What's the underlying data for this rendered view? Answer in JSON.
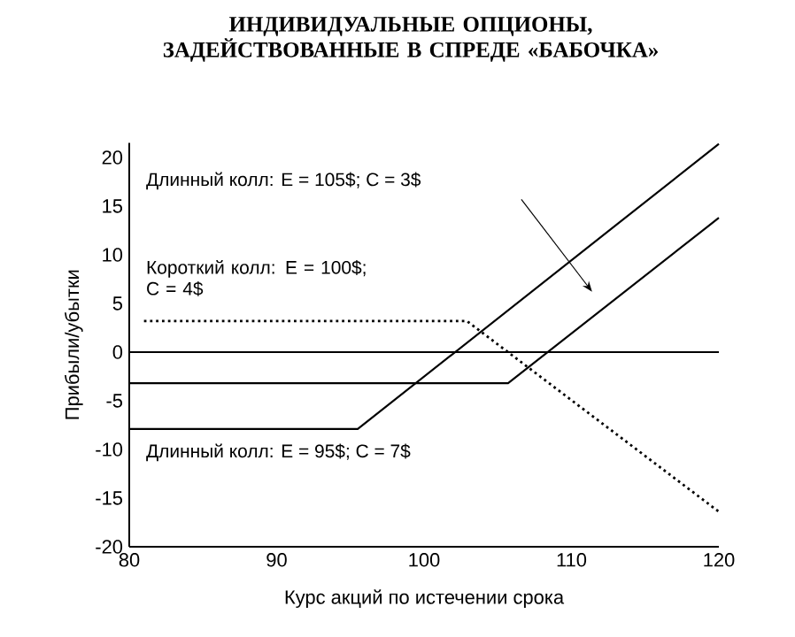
{
  "chart_data": {
    "type": "line",
    "title": "ИНДИВИДУАЛЬНЫЕ ОПЦИОНЫ, ЗАДЕЙСТВОВАННЫЕ В СПРЕДЕ «БАБОЧКА»",
    "xlabel": "Курс акций по истечении срока",
    "ylabel": "Прибыли/убытки",
    "xlim": [
      80,
      120
    ],
    "ylim": [
      -20,
      21.5
    ],
    "xticks": [
      80,
      90,
      100,
      110,
      120
    ],
    "yticks": [
      -20,
      -15,
      -10,
      -5,
      0,
      5,
      10,
      15,
      20
    ],
    "marker": "none",
    "annotations": [
      "Длинный колл: E = 105$; C = 3$"
    ],
    "ref_lines": [
      {
        "axis": "y",
        "value": 0,
        "color": "#000000",
        "line_style": "solid"
      }
    ],
    "series": [
      {
        "color": "#000000",
        "line_style": "solid",
        "x": [
          80,
          105.7,
          120
        ],
        "values": [
          -3.2,
          -3.2,
          13.8
        ]
      },
      {
        "name": "Короткий колл: E = 100$; C = 4$",
        "color": "#000000",
        "line_style": "dotted",
        "x": [
          81,
          102.9,
          120
        ],
        "values": [
          3.2,
          3.2,
          -16.4
        ]
      },
      {
        "name": "Длинный колл: E = 95$; C = 7$",
        "color": "#000000",
        "line_style": "solid",
        "x": [
          80,
          95.5,
          120
        ],
        "values": [
          -7.9,
          -7.9,
          21.4
        ]
      }
    ]
  }
}
